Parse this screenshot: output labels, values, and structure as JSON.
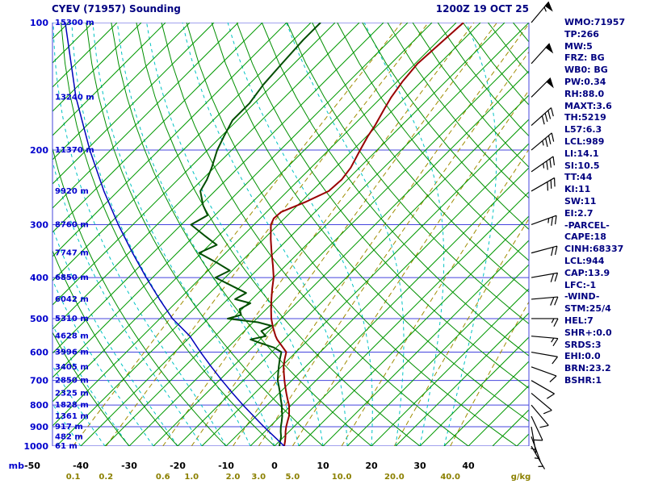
{
  "header": {
    "title": "CYEV (71957) Sounding",
    "datetime": "1200Z 19 OCT 25"
  },
  "axes": {
    "pressure_unit": "mb",
    "pressure_ticks": [
      100,
      200,
      300,
      400,
      500,
      600,
      700,
      800,
      900,
      1000
    ],
    "temp_labels": [
      -50,
      -40,
      -30,
      -20,
      -10,
      0,
      10,
      20,
      30,
      40
    ],
    "mixing_unit": "g/kg",
    "mixing_labels": [
      "0.1",
      "0.2",
      "0.6",
      "1.0",
      "2.0",
      "3.0",
      "5.0",
      "10.0",
      "20.0",
      "40.0"
    ],
    "mixing_values": [
      0.1,
      0.2,
      0.6,
      1.0,
      2.0,
      3.0,
      5.0,
      10.0,
      20.0,
      40.0
    ],
    "height_labels": [
      {
        "p": 100,
        "label": "15300 m"
      },
      {
        "p": 150,
        "label": "13240 m"
      },
      {
        "p": 200,
        "label": "11370 m"
      },
      {
        "p": 250,
        "label": "9920 m"
      },
      {
        "p": 300,
        "label": "8760 m"
      },
      {
        "p": 350,
        "label": "7747 m"
      },
      {
        "p": 400,
        "label": "6850 m"
      },
      {
        "p": 450,
        "label": "6042 m"
      },
      {
        "p": 500,
        "label": "5310 m"
      },
      {
        "p": 550,
        "label": "4628 m"
      },
      {
        "p": 600,
        "label": "3996 m"
      },
      {
        "p": 650,
        "label": "3405 m"
      },
      {
        "p": 700,
        "label": "2850 m"
      },
      {
        "p": 750,
        "label": "2325 m"
      },
      {
        "p": 800,
        "label": "1828 m"
      },
      {
        "p": 850,
        "label": "1361 m"
      },
      {
        "p": 900,
        "label": "917 m"
      },
      {
        "p": 950,
        "label": "482 m"
      },
      {
        "p": 1000,
        "label": "61 m"
      }
    ]
  },
  "indices": [
    "WMO:71957",
    "TP:266",
    "MW:5",
    "FRZ: BG",
    "WB0: BG",
    "PW:0.34",
    "RH:88.0",
    "MAXT:3.6",
    "TH:5219",
    "L57:6.3",
    "LCL:989",
    "LI:14.1",
    "SI:10.5",
    "TT:44",
    "KI:11",
    "SW:11",
    "EI:2.7",
    "-PARCEL-",
    "CAPE:18",
    "CINH:68337",
    "LCL:944",
    "CAP:13.9",
    "LFC:-1",
    "-WIND-",
    "STM:25/4",
    "HEL:7",
    "SHR+:0.0",
    "SRDS:3",
    "EHI:0.0",
    "BRN:23.2",
    "BSHR:1"
  ],
  "colors": {
    "navy_text": "#000080",
    "axis_blue": "#0000cd",
    "isobar": "#4444dd",
    "isotherm": "#009900",
    "dry_adiabat": "#008f00",
    "moist_adiabat": "#00c3c3",
    "mixing_ratio": "#a08c00",
    "mixing_label": "#8b8000",
    "temperature": "#990000",
    "dewpoint": "#004d00",
    "parcel": "#0000bb",
    "wind_barb": "#000000",
    "temp_label": "#000000"
  },
  "chart_data": {
    "type": "line",
    "subtype": "skew-t-log-p",
    "title": "CYEV (71957) Sounding",
    "time": "1200Z 19 OCT 25",
    "pressure_axis": {
      "unit": "mb",
      "min": 100,
      "max": 1000,
      "scale": "log"
    },
    "temperature_axis": {
      "unit": "C",
      "min": -50,
      "max": 40,
      "skew_deg": 45
    },
    "grid": {
      "isotherms_c": {
        "min": -135,
        "max": 50,
        "step": 5
      },
      "dry_adiabats_theta_c": {
        "min": -30,
        "max": 200,
        "step": 10
      },
      "moist_adiabats_thetaw_c": {
        "min": -40,
        "max": 35,
        "step": 5
      },
      "mixing_ratio_g_kg": [
        0.1,
        0.2,
        0.6,
        1.0,
        2.0,
        3.0,
        5.0,
        10.0,
        20.0,
        40.0
      ]
    },
    "series": [
      {
        "name": "Temperature",
        "color": "#990000",
        "width": 2,
        "points": [
          [
            1000,
            2.0
          ],
          [
            975,
            1.2
          ],
          [
            950,
            0.3
          ],
          [
            925,
            -0.7
          ],
          [
            900,
            -1.6
          ],
          [
            875,
            -2.4
          ],
          [
            850,
            -3.2
          ],
          [
            825,
            -4.3
          ],
          [
            800,
            -5.5
          ],
          [
            775,
            -7.0
          ],
          [
            750,
            -8.5
          ],
          [
            725,
            -10.0
          ],
          [
            700,
            -11.5
          ],
          [
            675,
            -13.0
          ],
          [
            650,
            -14.5
          ],
          [
            625,
            -15.8
          ],
          [
            600,
            -17.0
          ],
          [
            580,
            -19.2
          ],
          [
            560,
            -21.5
          ],
          [
            550,
            -22.5
          ],
          [
            525,
            -24.8
          ],
          [
            500,
            -27.0
          ],
          [
            475,
            -29.0
          ],
          [
            450,
            -31.0
          ],
          [
            425,
            -33.0
          ],
          [
            400,
            -35.0
          ],
          [
            375,
            -37.6
          ],
          [
            350,
            -40.5
          ],
          [
            325,
            -43.5
          ],
          [
            300,
            -46.5
          ],
          [
            290,
            -47.2
          ],
          [
            280,
            -47.0
          ],
          [
            265,
            -44.0
          ],
          [
            250,
            -41.5
          ],
          [
            235,
            -41.2
          ],
          [
            220,
            -41.8
          ],
          [
            200,
            -43.5
          ],
          [
            185,
            -44.8
          ],
          [
            175,
            -45.5
          ],
          [
            160,
            -47.0
          ],
          [
            150,
            -48.0
          ],
          [
            138,
            -48.9
          ],
          [
            125,
            -49.5
          ],
          [
            112,
            -49.0
          ],
          [
            100,
            -48.5
          ]
        ]
      },
      {
        "name": "Dewpoint",
        "color": "#004d00",
        "width": 2,
        "points": [
          [
            1000,
            1.0
          ],
          [
            975,
            0.2
          ],
          [
            950,
            -0.6
          ],
          [
            925,
            -1.7
          ],
          [
            900,
            -2.7
          ],
          [
            875,
            -3.6
          ],
          [
            850,
            -4.6
          ],
          [
            825,
            -5.8
          ],
          [
            800,
            -7.0
          ],
          [
            775,
            -8.4
          ],
          [
            750,
            -9.8
          ],
          [
            725,
            -11.3
          ],
          [
            700,
            -12.9
          ],
          [
            675,
            -14.2
          ],
          [
            650,
            -15.5
          ],
          [
            625,
            -16.8
          ],
          [
            600,
            -18.0
          ],
          [
            585,
            -20.5
          ],
          [
            570,
            -24.5
          ],
          [
            560,
            -27.0
          ],
          [
            550,
            -24.5
          ],
          [
            535,
            -26.5
          ],
          [
            520,
            -25.5
          ],
          [
            510,
            -29.0
          ],
          [
            500,
            -36.0
          ],
          [
            490,
            -34.0
          ],
          [
            475,
            -35.5
          ],
          [
            460,
            -34.5
          ],
          [
            450,
            -38.5
          ],
          [
            435,
            -37.5
          ],
          [
            420,
            -41.5
          ],
          [
            400,
            -47.0
          ],
          [
            385,
            -45.5
          ],
          [
            370,
            -49.5
          ],
          [
            350,
            -55.5
          ],
          [
            335,
            -53.5
          ],
          [
            320,
            -57.5
          ],
          [
            300,
            -63.0
          ],
          [
            285,
            -61.5
          ],
          [
            270,
            -64.5
          ],
          [
            250,
            -68.0
          ],
          [
            235,
            -69.0
          ],
          [
            220,
            -70.5
          ],
          [
            200,
            -73.0
          ],
          [
            185,
            -74.5
          ],
          [
            170,
            -76.0
          ],
          [
            155,
            -76.0
          ],
          [
            140,
            -77.0
          ],
          [
            125,
            -77.5
          ],
          [
            110,
            -78.0
          ],
          [
            100,
            -78.0
          ]
        ]
      },
      {
        "name": "Parcel",
        "color": "#0000bb",
        "width": 1.5,
        "points": [
          [
            1000,
            2.0
          ],
          [
            950,
            -2.0
          ],
          [
            900,
            -6.2
          ],
          [
            850,
            -10.5
          ],
          [
            800,
            -15.0
          ],
          [
            750,
            -19.6
          ],
          [
            700,
            -24.4
          ],
          [
            650,
            -29.4
          ],
          [
            600,
            -34.7
          ],
          [
            550,
            -40.2
          ],
          [
            500,
            -47.4
          ],
          [
            450,
            -54.1
          ],
          [
            400,
            -61.3
          ],
          [
            350,
            -69.2
          ],
          [
            300,
            -78.0
          ],
          [
            250,
            -87.9
          ],
          [
            200,
            -99.3
          ],
          [
            150,
            -113.1
          ],
          [
            100,
            -130.7
          ]
        ]
      }
    ],
    "winds": {
      "unit": "kt",
      "levels": [
        [
          1000,
          150,
          4
        ],
        [
          950,
          160,
          5
        ],
        [
          900,
          170,
          5
        ],
        [
          850,
          155,
          8
        ],
        [
          800,
          140,
          8
        ],
        [
          750,
          130,
          10
        ],
        [
          700,
          120,
          10
        ],
        [
          650,
          110,
          12
        ],
        [
          600,
          100,
          12
        ],
        [
          550,
          95,
          15
        ],
        [
          500,
          90,
          15
        ],
        [
          450,
          85,
          18
        ],
        [
          400,
          80,
          20
        ],
        [
          350,
          75,
          22
        ],
        [
          300,
          70,
          25
        ],
        [
          250,
          60,
          30
        ],
        [
          225,
          55,
          33
        ],
        [
          200,
          50,
          35
        ],
        [
          175,
          48,
          40
        ],
        [
          150,
          45,
          48
        ],
        [
          125,
          42,
          52
        ],
        [
          100,
          40,
          55
        ]
      ]
    }
  }
}
